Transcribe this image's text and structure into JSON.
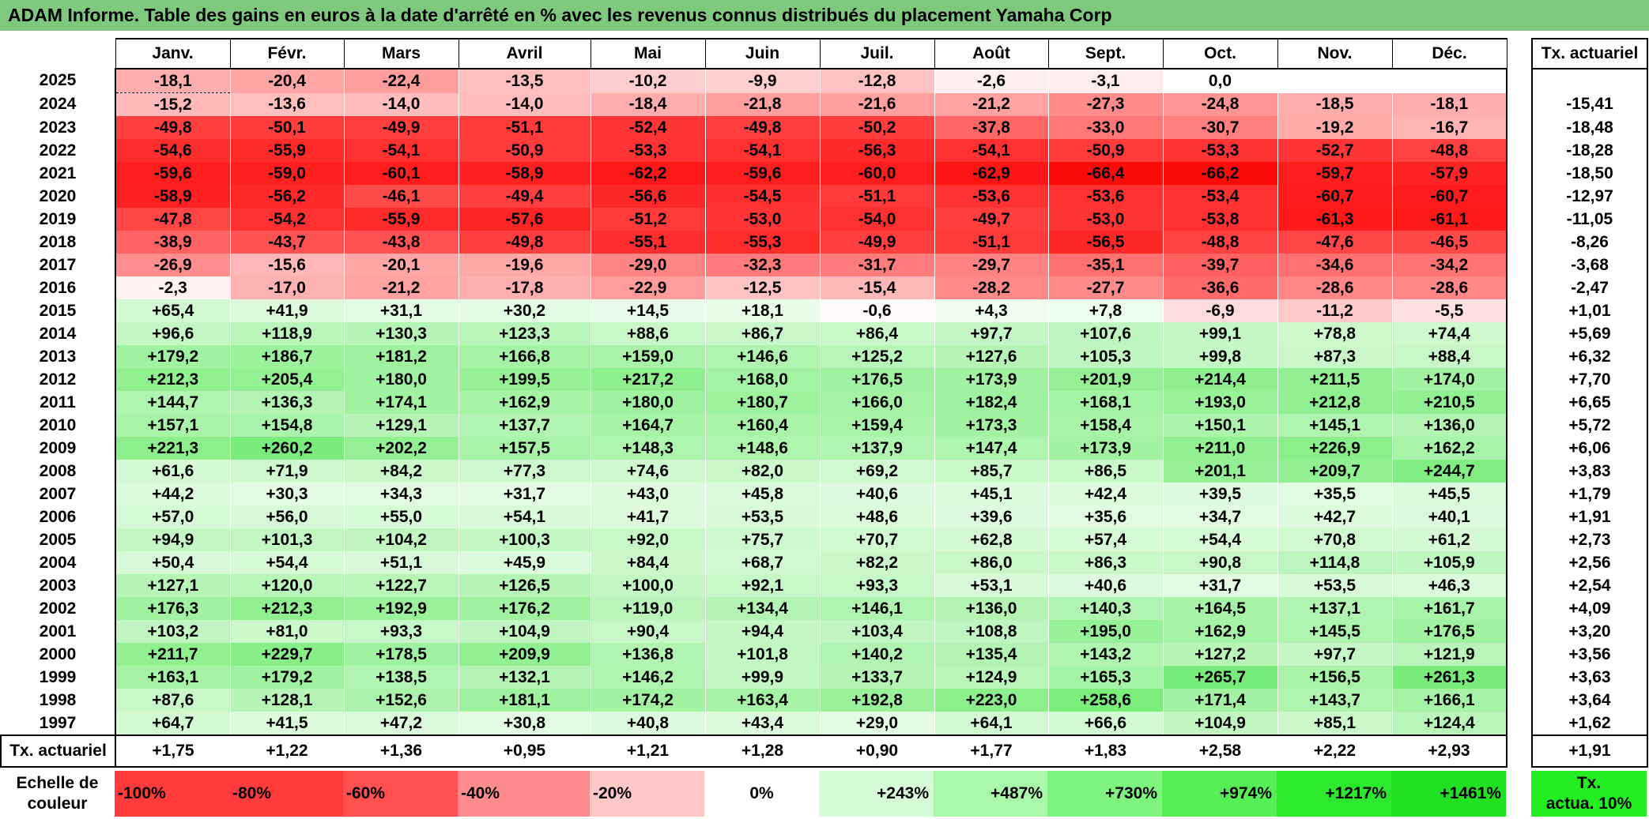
{
  "title": "ADAM Informe. Table des gains en euros à la date d'arrêté en % avec les revenus connus distribués du placement Yamaha Corp",
  "months": [
    "Janv.",
    "Févr.",
    "Mars",
    "Avril",
    "Mai",
    "Juin",
    "Juil.",
    "Août",
    "Sept.",
    "Oct.",
    "Nov.",
    "Déc."
  ],
  "rate_header": "Tx. actuariel",
  "rows": [
    {
      "year": "2025",
      "values": [
        "-18,1",
        "-20,4",
        "-22,4",
        "-13,5",
        "-10,2",
        "-9,9",
        "-12,8",
        "-2,6",
        "-3,1",
        "0,0",
        "",
        ""
      ],
      "rate": ""
    },
    {
      "year": "2024",
      "values": [
        "-15,2",
        "-13,6",
        "-14,0",
        "-14,0",
        "-18,4",
        "-21,8",
        "-21,6",
        "-21,2",
        "-27,3",
        "-24,8",
        "-18,5",
        "-18,1"
      ],
      "rate": "-15,41"
    },
    {
      "year": "2023",
      "values": [
        "-49,8",
        "-50,1",
        "-49,9",
        "-51,1",
        "-52,4",
        "-49,8",
        "-50,2",
        "-37,8",
        "-33,0",
        "-30,7",
        "-19,2",
        "-16,7"
      ],
      "rate": "-18,48"
    },
    {
      "year": "2022",
      "values": [
        "-54,6",
        "-55,9",
        "-54,1",
        "-50,9",
        "-53,3",
        "-54,1",
        "-56,3",
        "-54,1",
        "-50,9",
        "-53,3",
        "-52,7",
        "-48,8"
      ],
      "rate": "-18,28"
    },
    {
      "year": "2021",
      "values": [
        "-59,6",
        "-59,0",
        "-60,1",
        "-58,9",
        "-62,2",
        "-59,6",
        "-60,0",
        "-62,9",
        "-66,4",
        "-66,2",
        "-59,7",
        "-57,9"
      ],
      "rate": "-18,50"
    },
    {
      "year": "2020",
      "values": [
        "-58,9",
        "-56,2",
        "-46,1",
        "-49,4",
        "-56,6",
        "-54,5",
        "-51,1",
        "-53,6",
        "-53,6",
        "-53,4",
        "-60,7",
        "-60,7"
      ],
      "rate": "-12,97"
    },
    {
      "year": "2019",
      "values": [
        "-47,8",
        "-54,2",
        "-55,9",
        "-57,6",
        "-51,2",
        "-53,0",
        "-54,0",
        "-49,7",
        "-53,0",
        "-53,8",
        "-61,3",
        "-61,1"
      ],
      "rate": "-11,05"
    },
    {
      "year": "2018",
      "values": [
        "-38,9",
        "-43,7",
        "-43,8",
        "-49,8",
        "-55,1",
        "-55,3",
        "-49,9",
        "-51,1",
        "-56,5",
        "-48,8",
        "-47,6",
        "-46,5"
      ],
      "rate": "-8,26"
    },
    {
      "year": "2017",
      "values": [
        "-26,9",
        "-15,6",
        "-20,1",
        "-19,6",
        "-29,0",
        "-32,3",
        "-31,7",
        "-29,7",
        "-35,1",
        "-39,7",
        "-34,6",
        "-34,2"
      ],
      "rate": "-3,68"
    },
    {
      "year": "2016",
      "values": [
        "-2,3",
        "-17,0",
        "-21,2",
        "-17,8",
        "-22,9",
        "-12,5",
        "-15,4",
        "-28,2",
        "-27,7",
        "-36,6",
        "-28,6",
        "-28,6"
      ],
      "rate": "-2,47"
    },
    {
      "year": "2015",
      "values": [
        "+65,4",
        "+41,9",
        "+31,1",
        "+30,2",
        "+14,5",
        "+18,1",
        "-0,6",
        "+4,3",
        "+7,8",
        "-6,9",
        "-11,2",
        "-5,5"
      ],
      "rate": "+1,01"
    },
    {
      "year": "2014",
      "values": [
        "+96,6",
        "+118,9",
        "+130,3",
        "+123,3",
        "+88,6",
        "+86,7",
        "+86,4",
        "+97,7",
        "+107,6",
        "+99,1",
        "+78,8",
        "+74,4"
      ],
      "rate": "+5,69"
    },
    {
      "year": "2013",
      "values": [
        "+179,2",
        "+186,7",
        "+181,2",
        "+166,8",
        "+159,0",
        "+146,6",
        "+125,2",
        "+127,6",
        "+105,3",
        "+99,8",
        "+87,3",
        "+88,4"
      ],
      "rate": "+6,32"
    },
    {
      "year": "2012",
      "values": [
        "+212,3",
        "+205,4",
        "+180,0",
        "+199,5",
        "+217,2",
        "+168,0",
        "+176,5",
        "+173,9",
        "+201,9",
        "+214,4",
        "+211,5",
        "+174,0"
      ],
      "rate": "+7,70"
    },
    {
      "year": "2011",
      "values": [
        "+144,7",
        "+136,3",
        "+174,1",
        "+162,9",
        "+180,0",
        "+180,7",
        "+166,0",
        "+182,4",
        "+168,1",
        "+193,0",
        "+212,8",
        "+210,5"
      ],
      "rate": "+6,65"
    },
    {
      "year": "2010",
      "values": [
        "+157,1",
        "+154,8",
        "+129,1",
        "+137,7",
        "+164,7",
        "+160,4",
        "+159,4",
        "+173,3",
        "+158,4",
        "+150,1",
        "+145,1",
        "+136,0"
      ],
      "rate": "+5,72"
    },
    {
      "year": "2009",
      "values": [
        "+221,3",
        "+260,2",
        "+202,2",
        "+157,5",
        "+148,3",
        "+148,6",
        "+137,9",
        "+147,4",
        "+173,9",
        "+211,0",
        "+226,9",
        "+162,2"
      ],
      "rate": "+6,06"
    },
    {
      "year": "2008",
      "values": [
        "+61,6",
        "+71,9",
        "+84,2",
        "+77,3",
        "+74,6",
        "+82,0",
        "+69,2",
        "+85,7",
        "+86,5",
        "+201,1",
        "+209,7",
        "+244,7"
      ],
      "rate": "+3,83"
    },
    {
      "year": "2007",
      "values": [
        "+44,2",
        "+30,3",
        "+34,3",
        "+31,7",
        "+43,0",
        "+45,8",
        "+40,6",
        "+45,1",
        "+42,4",
        "+39,5",
        "+35,5",
        "+45,5"
      ],
      "rate": "+1,79"
    },
    {
      "year": "2006",
      "values": [
        "+57,0",
        "+56,0",
        "+55,0",
        "+54,1",
        "+41,7",
        "+53,5",
        "+48,6",
        "+39,6",
        "+35,6",
        "+34,7",
        "+42,7",
        "+40,1"
      ],
      "rate": "+1,91"
    },
    {
      "year": "2005",
      "values": [
        "+94,9",
        "+101,3",
        "+104,2",
        "+100,3",
        "+92,0",
        "+75,7",
        "+70,7",
        "+62,8",
        "+57,4",
        "+54,4",
        "+70,8",
        "+61,2"
      ],
      "rate": "+2,73"
    },
    {
      "year": "2004",
      "values": [
        "+50,4",
        "+54,4",
        "+51,1",
        "+45,9",
        "+84,4",
        "+68,7",
        "+82,2",
        "+86,0",
        "+86,3",
        "+90,8",
        "+114,8",
        "+105,9"
      ],
      "rate": "+2,56"
    },
    {
      "year": "2003",
      "values": [
        "+127,1",
        "+120,0",
        "+122,7",
        "+126,5",
        "+100,0",
        "+92,1",
        "+93,3",
        "+53,1",
        "+40,6",
        "+31,7",
        "+53,5",
        "+46,3"
      ],
      "rate": "+2,54"
    },
    {
      "year": "2002",
      "values": [
        "+176,3",
        "+212,3",
        "+192,9",
        "+176,2",
        "+119,0",
        "+134,4",
        "+146,1",
        "+136,0",
        "+140,3",
        "+164,5",
        "+137,1",
        "+161,7"
      ],
      "rate": "+4,09"
    },
    {
      "year": "2001",
      "values": [
        "+103,2",
        "+81,0",
        "+93,3",
        "+104,9",
        "+90,4",
        "+94,4",
        "+103,4",
        "+108,8",
        "+195,0",
        "+162,9",
        "+145,5",
        "+176,5"
      ],
      "rate": "+3,20"
    },
    {
      "year": "2000",
      "values": [
        "+211,7",
        "+229,7",
        "+178,5",
        "+209,9",
        "+136,8",
        "+101,8",
        "+140,2",
        "+135,4",
        "+143,2",
        "+127,2",
        "+97,7",
        "+121,9"
      ],
      "rate": "+3,56"
    },
    {
      "year": "1999",
      "values": [
        "+163,1",
        "+179,2",
        "+138,5",
        "+132,1",
        "+146,2",
        "+99,9",
        "+133,7",
        "+124,9",
        "+165,3",
        "+265,7",
        "+156,5",
        "+261,3"
      ],
      "rate": "+3,63"
    },
    {
      "year": "1998",
      "values": [
        "+87,6",
        "+128,1",
        "+152,6",
        "+181,1",
        "+174,2",
        "+163,4",
        "+192,8",
        "+223,0",
        "+258,6",
        "+171,4",
        "+143,7",
        "+166,1"
      ],
      "rate": "+3,64"
    },
    {
      "year": "1997",
      "values": [
        "+64,7",
        "+41,5",
        "+47,2",
        "+30,8",
        "+40,8",
        "+43,4",
        "+29,0",
        "+64,1",
        "+66,6",
        "+104,9",
        "+85,1",
        "+124,4"
      ],
      "rate": "+1,62"
    }
  ],
  "summary": {
    "label": "Tx. actuariel",
    "values": [
      "+1,75",
      "+1,22",
      "+1,36",
      "+0,95",
      "+1,21",
      "+1,28",
      "+0,90",
      "+1,77",
      "+1,83",
      "+2,58",
      "+2,22",
      "+2,93"
    ],
    "rate": "+1,91"
  },
  "legend": {
    "label_line1": "Echelle de",
    "label_line2": "couleur",
    "steps": [
      {
        "text": "-100%",
        "color": "#ff3b3b",
        "align": "neg"
      },
      {
        "text": "-80%",
        "color": "#ff3b3b",
        "align": "neg"
      },
      {
        "text": "-60%",
        "color": "#ff4f4f",
        "align": "neg"
      },
      {
        "text": "-40%",
        "color": "#ff8c8c",
        "align": "neg"
      },
      {
        "text": "-20%",
        "color": "#ffc7c7",
        "align": "neg"
      },
      {
        "text": "0%",
        "color": "#ffffff",
        "align": "zero"
      },
      {
        "text": "+243%",
        "color": "#d6fbd6",
        "align": "pos"
      },
      {
        "text": "+487%",
        "color": "#a9f7a9",
        "align": "pos"
      },
      {
        "text": "+730%",
        "color": "#7ef37e",
        "align": "pos"
      },
      {
        "text": "+974%",
        "color": "#55ee55",
        "align": "pos"
      },
      {
        "text": "+1217%",
        "color": "#2ee82e",
        "align": "pos"
      },
      {
        "text": "+1461%",
        "color": "#22e022",
        "align": "pos"
      }
    ],
    "rate_line1": "Tx.",
    "rate_line2": "actua. 10%",
    "rate_color": "#22ee22"
  }
}
